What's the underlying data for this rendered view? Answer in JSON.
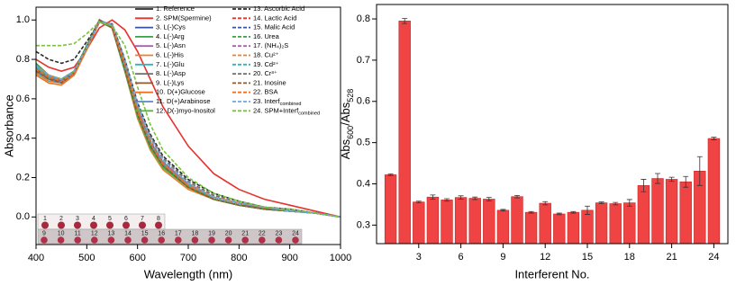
{
  "chart_data": [
    {
      "type": "line",
      "xlabel": "Wavelength (nm)",
      "ylabel": "Absorbance",
      "x": [
        400,
        425,
        450,
        475,
        500,
        525,
        550,
        575,
        600,
        625,
        650,
        700,
        750,
        800,
        850,
        900,
        950,
        1000
      ],
      "xlim": [
        400,
        1000
      ],
      "xticks": [
        400,
        500,
        600,
        700,
        800,
        900,
        1000
      ],
      "ylim": [
        -0.14,
        1.065
      ],
      "yticks": [
        {
          "value": 0,
          "label": "0.0"
        },
        0.2,
        0.4,
        0.6,
        0.8,
        {
          "value": 1,
          "label": "1.0"
        }
      ],
      "series": [
        {
          "name": "1. Reference",
          "color": "#2b2b2b",
          "dash": false,
          "values": [
            0.74,
            0.7,
            0.69,
            0.73,
            0.86,
            0.99,
            0.97,
            0.76,
            0.53,
            0.37,
            0.27,
            0.16,
            0.1,
            0.07,
            0.05,
            0.03,
            0.02,
            0.0
          ]
        },
        {
          "name": "2. SPM(Spermine)",
          "color": "#e8322e",
          "dash": false,
          "values": [
            0.8,
            0.76,
            0.74,
            0.76,
            0.85,
            0.96,
            1.0,
            0.95,
            0.84,
            0.7,
            0.56,
            0.36,
            0.22,
            0.14,
            0.09,
            0.06,
            0.03,
            0.0
          ]
        },
        {
          "name": "3. L(-)Cys",
          "color": "#3a52a4",
          "dash": false,
          "values": [
            0.75,
            0.71,
            0.7,
            0.74,
            0.87,
            1.0,
            0.96,
            0.74,
            0.51,
            0.35,
            0.25,
            0.15,
            0.09,
            0.06,
            0.04,
            0.03,
            0.02,
            0.0
          ]
        },
        {
          "name": "4. L(-)Arg",
          "color": "#3aa14a",
          "dash": false,
          "values": [
            0.78,
            0.72,
            0.7,
            0.74,
            0.86,
            0.99,
            0.96,
            0.75,
            0.52,
            0.36,
            0.26,
            0.15,
            0.09,
            0.06,
            0.04,
            0.03,
            0.02,
            0.0
          ]
        },
        {
          "name": "5. L(-)Asn",
          "color": "#a65fb0",
          "dash": false,
          "values": [
            0.76,
            0.71,
            0.69,
            0.73,
            0.86,
            1.0,
            0.97,
            0.76,
            0.53,
            0.37,
            0.27,
            0.16,
            0.1,
            0.07,
            0.04,
            0.03,
            0.02,
            0.0
          ]
        },
        {
          "name": "6. L(-)His",
          "color": "#e8822a",
          "dash": false,
          "values": [
            0.77,
            0.72,
            0.7,
            0.74,
            0.87,
            1.0,
            0.96,
            0.74,
            0.5,
            0.34,
            0.24,
            0.14,
            0.09,
            0.06,
            0.04,
            0.03,
            0.02,
            0.0
          ]
        },
        {
          "name": "7. L(-)Glu",
          "color": "#2bb5c0",
          "dash": false,
          "values": [
            0.73,
            0.69,
            0.68,
            0.72,
            0.85,
            0.99,
            0.97,
            0.77,
            0.54,
            0.38,
            0.28,
            0.17,
            0.1,
            0.07,
            0.05,
            0.03,
            0.02,
            0.0
          ]
        },
        {
          "name": "8. L(-)Asp",
          "color": "#6e6e6e",
          "dash": false,
          "values": [
            0.74,
            0.7,
            0.69,
            0.73,
            0.86,
            0.99,
            0.97,
            0.76,
            0.54,
            0.38,
            0.27,
            0.16,
            0.1,
            0.07,
            0.05,
            0.03,
            0.02,
            0.0
          ]
        },
        {
          "name": "9. L(-)Lys",
          "color": "#8c5a2b",
          "dash": false,
          "values": [
            0.75,
            0.7,
            0.69,
            0.73,
            0.86,
            1.0,
            0.96,
            0.75,
            0.52,
            0.36,
            0.26,
            0.15,
            0.09,
            0.06,
            0.04,
            0.03,
            0.02,
            0.0
          ]
        },
        {
          "name": "10. D(+)Glucose",
          "color": "#f07020",
          "dash": false,
          "values": [
            0.72,
            0.68,
            0.67,
            0.72,
            0.85,
            0.99,
            0.97,
            0.76,
            0.53,
            0.37,
            0.27,
            0.16,
            0.1,
            0.07,
            0.05,
            0.03,
            0.02,
            0.0
          ]
        },
        {
          "name": "11. D(+)Arabinose",
          "color": "#5f86c8",
          "dash": false,
          "values": [
            0.74,
            0.7,
            0.68,
            0.73,
            0.86,
            1.0,
            0.96,
            0.75,
            0.52,
            0.36,
            0.26,
            0.15,
            0.09,
            0.06,
            0.04,
            0.03,
            0.02,
            0.0
          ]
        },
        {
          "name": "12. D(-)myo-Inositol",
          "color": "#50b848",
          "dash": false,
          "values": [
            0.76,
            0.71,
            0.7,
            0.74,
            0.87,
            1.0,
            0.96,
            0.74,
            0.51,
            0.35,
            0.25,
            0.15,
            0.09,
            0.06,
            0.04,
            0.03,
            0.02,
            0.0
          ]
        },
        {
          "name": "13. Ascorbic Acid",
          "color": "#2b2b2b",
          "dash": true,
          "values": [
            0.84,
            0.8,
            0.78,
            0.8,
            0.89,
            0.99,
            0.98,
            0.8,
            0.58,
            0.42,
            0.31,
            0.19,
            0.12,
            0.08,
            0.05,
            0.04,
            0.02,
            0.0
          ]
        },
        {
          "name": "14. Lactic Acid",
          "color": "#e8322e",
          "dash": true,
          "values": [
            0.76,
            0.71,
            0.7,
            0.74,
            0.87,
            1.0,
            0.96,
            0.75,
            0.52,
            0.36,
            0.26,
            0.15,
            0.09,
            0.06,
            0.04,
            0.03,
            0.02,
            0.0
          ]
        },
        {
          "name": "15. Malic Acid",
          "color": "#3a52a4",
          "dash": true,
          "values": [
            0.75,
            0.71,
            0.69,
            0.73,
            0.86,
            0.99,
            0.97,
            0.76,
            0.53,
            0.37,
            0.27,
            0.16,
            0.1,
            0.07,
            0.05,
            0.03,
            0.02,
            0.0
          ]
        },
        {
          "name": "16. Urea",
          "color": "#3aa14a",
          "dash": true,
          "values": [
            0.77,
            0.72,
            0.7,
            0.74,
            0.87,
            1.0,
            0.96,
            0.75,
            0.52,
            0.36,
            0.26,
            0.15,
            0.09,
            0.06,
            0.04,
            0.03,
            0.02,
            0.0
          ]
        },
        {
          "name": "17. (NH₄)₂S",
          "color": "#a65fb0",
          "dash": true,
          "values": [
            0.74,
            0.7,
            0.69,
            0.73,
            0.86,
            0.99,
            0.97,
            0.77,
            0.55,
            0.39,
            0.28,
            0.17,
            0.1,
            0.07,
            0.05,
            0.03,
            0.02,
            0.0
          ]
        },
        {
          "name": "18. Cu²⁺",
          "color": "#e8822a",
          "dash": true,
          "values": [
            0.73,
            0.69,
            0.68,
            0.72,
            0.85,
            0.99,
            0.97,
            0.78,
            0.56,
            0.4,
            0.29,
            0.17,
            0.11,
            0.07,
            0.05,
            0.03,
            0.02,
            0.0
          ]
        },
        {
          "name": "19. Cd²⁺",
          "color": "#2bb5c0",
          "dash": true,
          "values": [
            0.76,
            0.71,
            0.7,
            0.74,
            0.86,
            1.0,
            0.97,
            0.76,
            0.53,
            0.37,
            0.27,
            0.16,
            0.1,
            0.07,
            0.05,
            0.03,
            0.02,
            0.0
          ]
        },
        {
          "name": "20. Cr³⁺",
          "color": "#6e6e6e",
          "dash": true,
          "values": [
            0.75,
            0.7,
            0.69,
            0.73,
            0.86,
            0.99,
            0.98,
            0.79,
            0.57,
            0.41,
            0.3,
            0.18,
            0.11,
            0.08,
            0.05,
            0.04,
            0.02,
            0.0
          ]
        },
        {
          "name": "21. Inosine",
          "color": "#8c5a2b",
          "dash": true,
          "values": [
            0.74,
            0.7,
            0.68,
            0.73,
            0.86,
            1.0,
            0.96,
            0.75,
            0.52,
            0.36,
            0.26,
            0.15,
            0.09,
            0.06,
            0.04,
            0.03,
            0.02,
            0.0
          ]
        },
        {
          "name": "22. BSA",
          "color": "#f07020",
          "dash": true,
          "values": [
            0.75,
            0.71,
            0.69,
            0.73,
            0.86,
            0.99,
            0.97,
            0.77,
            0.54,
            0.38,
            0.27,
            0.16,
            0.1,
            0.07,
            0.05,
            0.03,
            0.02,
            0.0
          ]
        },
        {
          "name": "23. Interf",
          "name_sub": "combined",
          "color": "#6fa8dc",
          "dash": true,
          "values": [
            0.77,
            0.72,
            0.7,
            0.74,
            0.86,
            0.99,
            0.98,
            0.8,
            0.57,
            0.4,
            0.29,
            0.17,
            0.1,
            0.07,
            0.05,
            0.03,
            0.02,
            0.0
          ]
        },
        {
          "name": "24. SPM+Interf",
          "name_sub": "combined",
          "color": "#7cc242",
          "dash": true,
          "values": [
            0.87,
            0.87,
            0.87,
            0.88,
            0.93,
            0.99,
            0.97,
            0.87,
            0.66,
            0.47,
            0.34,
            0.2,
            0.12,
            0.08,
            0.05,
            0.04,
            0.02,
            0.0
          ]
        }
      ],
      "inset_labels_row1": [
        "1",
        "2",
        "3",
        "4",
        "5",
        "6",
        "7",
        "8"
      ],
      "inset_labels_row2": [
        "9",
        "10",
        "11",
        "12",
        "13",
        "14",
        "15",
        "16",
        "17",
        "18",
        "19",
        "20",
        "21",
        "22",
        "23",
        "24"
      ]
    },
    {
      "type": "bar",
      "xlabel": "Interferent No.",
      "ylabel": [
        "Abs",
        "600",
        "/Abs",
        "528"
      ],
      "color": "#f04444",
      "x": [
        1,
        2,
        3,
        4,
        5,
        6,
        7,
        8,
        9,
        10,
        11,
        12,
        13,
        14,
        15,
        16,
        17,
        18,
        19,
        20,
        21,
        22,
        23,
        24
      ],
      "values": [
        0.422,
        0.795,
        0.356,
        0.368,
        0.361,
        0.367,
        0.365,
        0.363,
        0.336,
        0.369,
        0.331,
        0.353,
        0.327,
        0.331,
        0.336,
        0.354,
        0.352,
        0.354,
        0.396,
        0.413,
        0.411,
        0.405,
        0.431,
        0.51
      ],
      "errors": [
        0.002,
        0.006,
        0.002,
        0.005,
        0.003,
        0.004,
        0.003,
        0.004,
        0.002,
        0.003,
        0.002,
        0.004,
        0.002,
        0.002,
        0.01,
        0.002,
        0.003,
        0.008,
        0.015,
        0.012,
        0.005,
        0.013,
        0.035,
        0.003
      ],
      "xlim": [
        0,
        25
      ],
      "xticks": [
        3,
        6,
        9,
        12,
        15,
        18,
        21,
        24
      ],
      "ylim": [
        0.255,
        0.835
      ],
      "yticks": [
        0.3,
        0.4,
        0.5,
        0.6,
        0.7,
        0.8
      ]
    }
  ]
}
